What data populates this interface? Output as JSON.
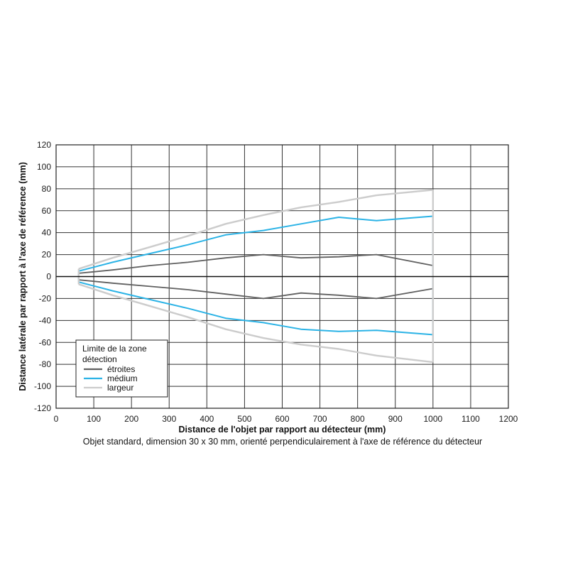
{
  "chart_data": {
    "type": "line",
    "xlabel": "Distance de l'objet par rapport au détecteur (mm)",
    "ylabel": "Distance latérale par rapport à l'axe de référence (mm)",
    "caption": "Objet standard, dimension 30 x 30 mm, orienté perpendiculairement à l'axe de référence du détecteur",
    "xlim": [
      0,
      1200
    ],
    "ylim": [
      -120,
      120
    ],
    "xticks": [
      0,
      100,
      200,
      300,
      400,
      500,
      600,
      700,
      800,
      900,
      1000,
      1100,
      1200
    ],
    "yticks": [
      120,
      100,
      80,
      60,
      40,
      20,
      0,
      -20,
      -40,
      -60,
      -80,
      -100,
      -120
    ],
    "grid": true,
    "legend": {
      "title_line1": "Limite de la zone",
      "title_line2": "détection",
      "placement": "bottom-left",
      "entries": [
        "étroites",
        "médium",
        "largeur"
      ]
    },
    "series": [
      {
        "name": "étroites",
        "color": "#606060",
        "upper": [
          [
            60,
            3
          ],
          [
            150,
            6
          ],
          [
            250,
            10
          ],
          [
            350,
            13
          ],
          [
            450,
            17
          ],
          [
            550,
            20
          ],
          [
            650,
            17
          ],
          [
            750,
            18
          ],
          [
            850,
            20
          ],
          [
            1000,
            10
          ]
        ],
        "lower": [
          [
            60,
            -3
          ],
          [
            150,
            -6
          ],
          [
            250,
            -9
          ],
          [
            350,
            -12
          ],
          [
            450,
            -16
          ],
          [
            550,
            -20
          ],
          [
            650,
            -15
          ],
          [
            750,
            -17
          ],
          [
            850,
            -20
          ],
          [
            1000,
            -11
          ]
        ]
      },
      {
        "name": "médium",
        "color": "#2bb3e6",
        "upper": [
          [
            60,
            5
          ],
          [
            150,
            13
          ],
          [
            250,
            21
          ],
          [
            350,
            29
          ],
          [
            450,
            38
          ],
          [
            550,
            42
          ],
          [
            650,
            48
          ],
          [
            750,
            54
          ],
          [
            850,
            51
          ],
          [
            1000,
            55
          ]
        ],
        "lower": [
          [
            60,
            -5
          ],
          [
            150,
            -13
          ],
          [
            250,
            -21
          ],
          [
            350,
            -29
          ],
          [
            450,
            -38
          ],
          [
            550,
            -42
          ],
          [
            650,
            -48
          ],
          [
            750,
            -50
          ],
          [
            850,
            -49
          ],
          [
            1000,
            -53
          ]
        ]
      },
      {
        "name": "largeur",
        "color": "#cccccc",
        "upper": [
          [
            60,
            7
          ],
          [
            150,
            17
          ],
          [
            250,
            27
          ],
          [
            350,
            37
          ],
          [
            450,
            48
          ],
          [
            550,
            56
          ],
          [
            650,
            63
          ],
          [
            750,
            68
          ],
          [
            850,
            74
          ],
          [
            1000,
            79
          ]
        ],
        "lower": [
          [
            60,
            -7
          ],
          [
            150,
            -17
          ],
          [
            250,
            -27
          ],
          [
            350,
            -37
          ],
          [
            450,
            -48
          ],
          [
            550,
            -56
          ],
          [
            650,
            -62
          ],
          [
            750,
            -66
          ],
          [
            850,
            -72
          ],
          [
            1000,
            -78
          ]
        ]
      }
    ]
  }
}
